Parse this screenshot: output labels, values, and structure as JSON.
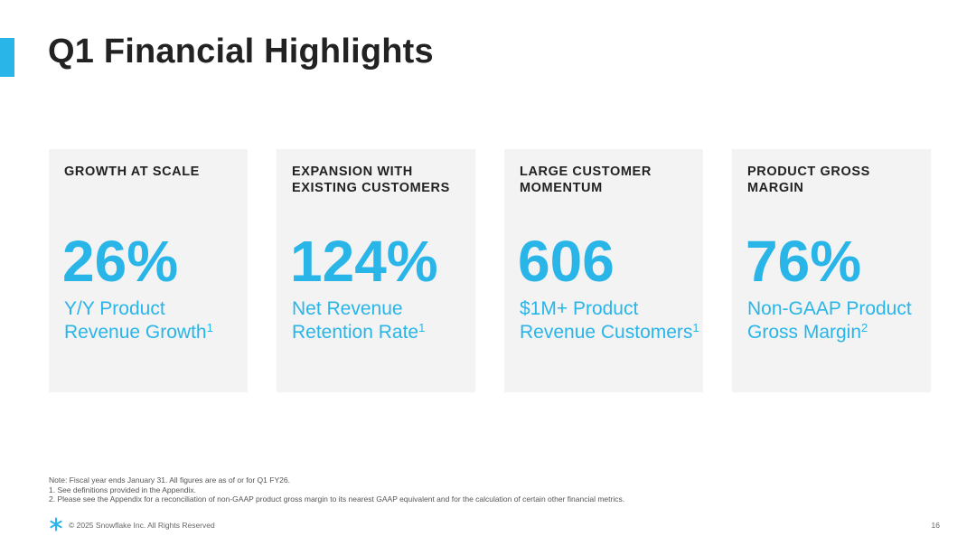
{
  "slide": {
    "title": "Q1 Financial Highlights",
    "accent_color": "#29b5e8"
  },
  "cards": [
    {
      "heading_line1": "GROWTH AT SCALE",
      "heading_line2": "",
      "value": "26%",
      "desc_line1": "Y/Y Product",
      "desc_line2": "Revenue Growth",
      "footnote_ref": "1"
    },
    {
      "heading_line1": "EXPANSION WITH",
      "heading_line2": "EXISTING CUSTOMERS",
      "value": "124%",
      "desc_line1": "Net Revenue",
      "desc_line2": "Retention Rate",
      "footnote_ref": "1"
    },
    {
      "heading_line1": "LARGE CUSTOMER",
      "heading_line2": "MOMENTUM",
      "value": "606",
      "desc_line1": "$1M+ Product",
      "desc_line2": "Revenue Customers",
      "footnote_ref": "1"
    },
    {
      "heading_line1": "PRODUCT GROSS",
      "heading_line2": "MARGIN",
      "value": "76%",
      "desc_line1": "Non-GAAP Product",
      "desc_line2": "Gross Margin",
      "footnote_ref": "2"
    }
  ],
  "footnotes": {
    "note": "Note: Fiscal year ends January 31. All figures are as of or for Q1 FY26.",
    "one": "1. See definitions provided in the Appendix.",
    "two": "2. Please see the Appendix for a reconciliation of non-GAAP product gross margin to its nearest GAAP equivalent and for the calculation of certain other financial metrics."
  },
  "footer": {
    "logo_icon": "snowflake-icon",
    "copyright": "© 2025 Snowflake Inc. All Rights Reserved",
    "page_number": "16"
  }
}
